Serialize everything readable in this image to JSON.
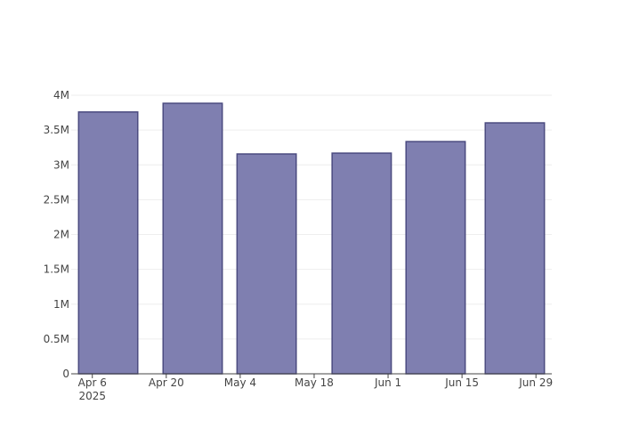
{
  "chart_data": {
    "type": "bar",
    "x": [
      "2025-04-09",
      "2025-04-25",
      "2025-05-09",
      "2025-05-27",
      "2025-06-10",
      "2025-06-25"
    ],
    "values": [
      3760000,
      3885000,
      3157000,
      3169000,
      3335000,
      3604000
    ],
    "color": "#7f7fb0",
    "edge_color": "#4b4b80",
    "xlim": [
      "2025-04-02",
      "2025-07-02"
    ],
    "xticks": [
      {
        "value": "2025-04-06",
        "label": "Apr 6\n2025"
      },
      {
        "value": "2025-04-20",
        "label": "Apr 20"
      },
      {
        "value": "2025-05-04",
        "label": "May 4"
      },
      {
        "value": "2025-05-18",
        "label": "May 18"
      },
      {
        "value": "2025-06-01",
        "label": "Jun 1"
      },
      {
        "value": "2025-06-15",
        "label": "Jun 15"
      },
      {
        "value": "2025-06-29",
        "label": "Jun 29"
      }
    ],
    "ylim": [
      0,
      4090000
    ],
    "yticks": [
      0,
      {
        "value": 500000,
        "label": "0.5M"
      },
      {
        "value": 1000000,
        "label": "1M"
      },
      {
        "value": 1500000,
        "label": "1.5M"
      },
      {
        "value": 2000000,
        "label": "2M"
      },
      {
        "value": 2500000,
        "label": "2.5M"
      },
      {
        "value": 3000000,
        "label": "3M"
      },
      {
        "value": 3500000,
        "label": "3.5M"
      },
      {
        "value": 4000000,
        "label": "4M"
      }
    ],
    "grid": true
  }
}
